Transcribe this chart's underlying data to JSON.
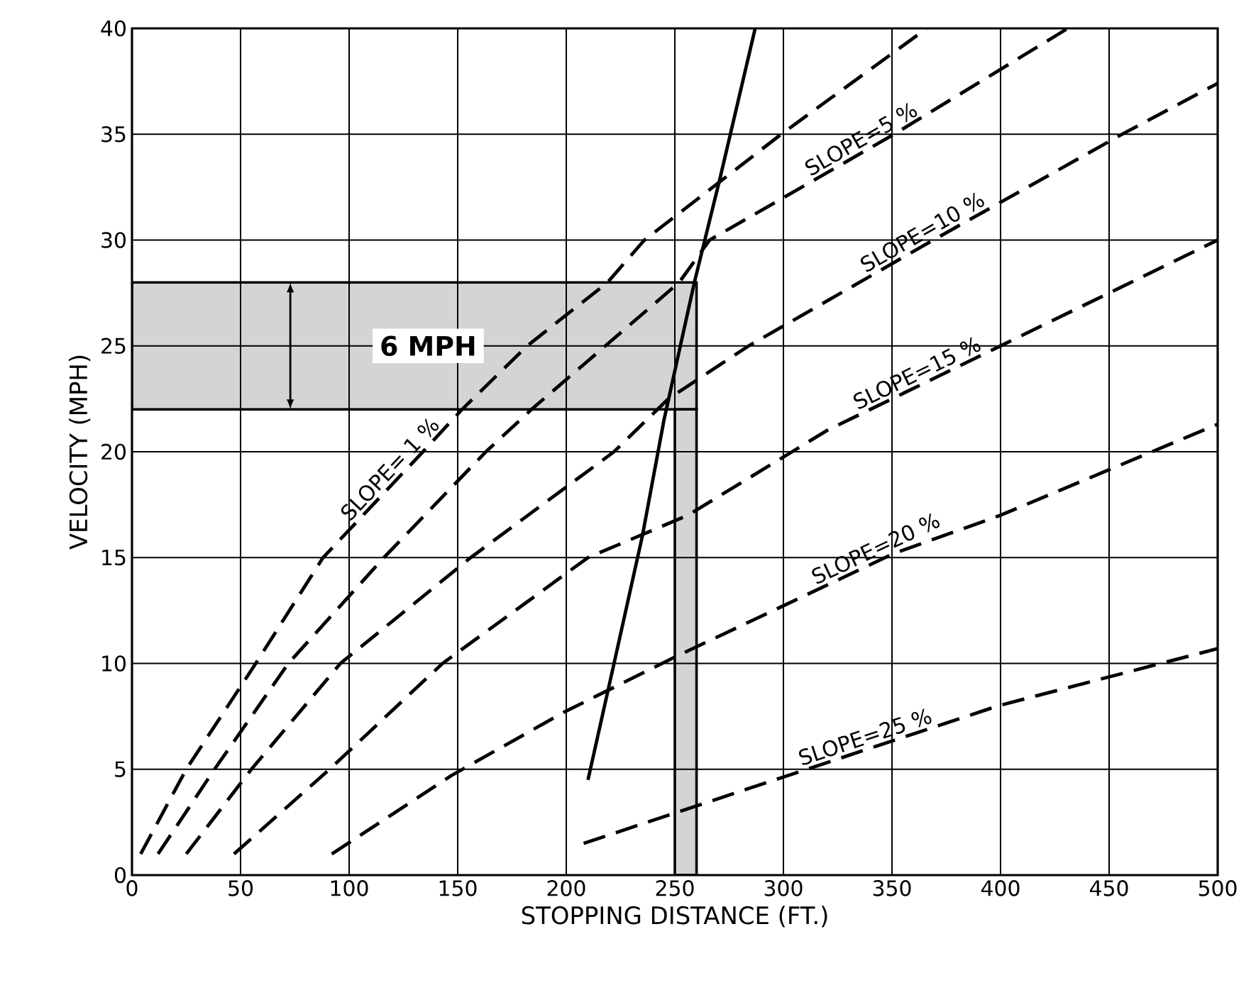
{
  "chart_data": {
    "type": "line",
    "xlabel": "STOPPING DISTANCE (FT.)",
    "ylabel": "VELOCITY (MPH)",
    "xlim": [
      0,
      500
    ],
    "ylim": [
      0,
      40
    ],
    "xticks": [
      0,
      50,
      100,
      150,
      200,
      250,
      300,
      350,
      400,
      450,
      500
    ],
    "yticks": [
      0,
      5,
      10,
      15,
      20,
      25,
      30,
      35,
      40
    ],
    "grid": true,
    "series": [
      {
        "name": "SLOPE= 1 %",
        "color": "#000000",
        "line_style": "dashed",
        "x": [
          4,
          25,
          57,
          88,
          134,
          152,
          182,
          219,
          236,
          299,
          366
        ],
        "values": [
          1,
          5,
          10,
          15,
          20,
          22,
          25,
          28,
          30,
          35,
          40
        ]
      },
      {
        "name": "SLOPE=5 %",
        "color": "#000000",
        "line_style": "dashed",
        "x": [
          12,
          38,
          72,
          116,
          163,
          184,
          252,
          266,
          351,
          431
        ],
        "values": [
          1,
          5,
          10,
          15,
          20,
          22,
          28,
          30,
          35,
          40
        ]
      },
      {
        "name": "SLOPE=10 %",
        "color": "#000000",
        "line_style": "dashed",
        "x": [
          25,
          55,
          96,
          156,
          222,
          247,
          284,
          369,
          456,
          500
        ],
        "values": [
          1,
          5,
          10,
          15,
          20,
          22.5,
          25,
          30,
          35,
          37.4
        ]
      },
      {
        "name": "SLOPE=15 %",
        "color": "#000000",
        "line_style": "dashed",
        "x": [
          47,
          91,
          143,
          210,
          256,
          320,
          400,
          500
        ],
        "values": [
          1,
          5,
          10,
          15,
          17,
          21,
          25,
          30
        ]
      },
      {
        "name": "SLOPE=20 %",
        "color": "#000000",
        "line_style": "dashed",
        "x": [
          92,
          147,
          199,
          250,
          351,
          400,
          500
        ],
        "values": [
          1,
          4.7,
          7.7,
          10.3,
          15.2,
          17,
          21.3
        ]
      },
      {
        "name": "SLOPE=25 %",
        "color": "#000000",
        "line_style": "dashed",
        "x": [
          208,
          299,
          399,
          500
        ],
        "values": [
          1.5,
          4.6,
          8,
          10.7
        ]
      },
      {
        "color": "#000000",
        "line_style": "solid",
        "x": [
          210,
          222,
          235,
          245,
          259,
          271,
          287
        ],
        "values": [
          4.5,
          10,
          16,
          21.5,
          28,
          33,
          40
        ]
      }
    ],
    "bands": [
      {
        "axis": "y",
        "from": 22,
        "to": 28,
        "color": "#d4d4d4"
      },
      {
        "axis": "x",
        "from": 250,
        "to": 260,
        "color": "#d4d4d4"
      }
    ],
    "annotations": [
      "6 MPH"
    ]
  }
}
